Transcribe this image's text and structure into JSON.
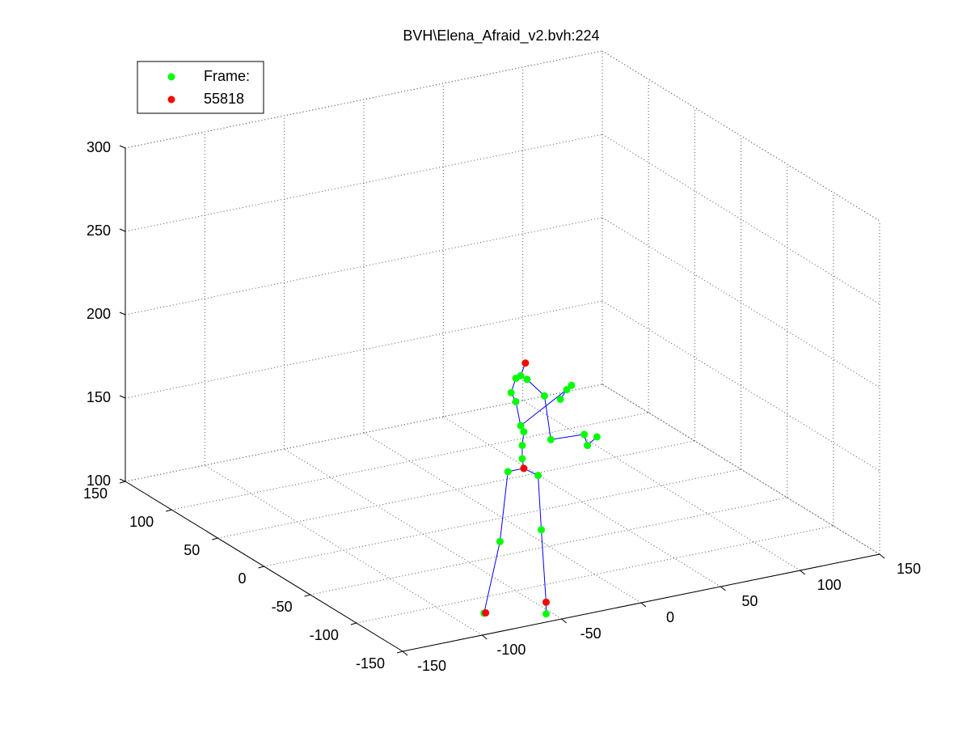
{
  "chart_data": {
    "type": "scatter3d",
    "title": "BVH\\Elena_Afraid_v2.bvh:224",
    "xlim": [
      -150,
      150
    ],
    "ylim": [
      -150,
      150
    ],
    "zlim": [
      100,
      300
    ],
    "xticks": [
      -150,
      -100,
      -50,
      0,
      50,
      100,
      150
    ],
    "yticks": [
      -150,
      -100,
      -50,
      0,
      50,
      100,
      150
    ],
    "zticks": [
      100,
      150,
      200,
      250,
      300
    ],
    "grid": true,
    "legend": "upper-left",
    "series": [
      {
        "name": "Frame:",
        "color": "#00ff00",
        "x": [
          -60,
          -63,
          -59,
          -66,
          -69,
          -66,
          -48,
          -63,
          -61,
          -62,
          -62,
          -61,
          -71,
          -52,
          -76,
          -50,
          -86,
          -47,
          -47,
          -44,
          -38,
          -34,
          -31,
          -21,
          -15,
          -23
        ],
        "y": [
          -128,
          -128,
          -128,
          -128,
          -128,
          -128,
          -128,
          -128,
          -128,
          -128,
          -128,
          -128,
          -128,
          -128,
          -128,
          -128,
          -128,
          -128,
          -128,
          -128,
          -128,
          -128,
          -128,
          -128,
          -128,
          -128
        ],
        "z": [
          248,
          241,
          238,
          240,
          232,
          226,
          226,
          211,
          207,
          199,
          191,
          185,
          185,
          179,
          144,
          146,
          103,
          95,
          102,
          199,
          222,
          227,
          229,
          191,
          195,
          198
        ]
      },
      {
        "name": "55818",
        "color": "#ff0000",
        "x": [
          -60,
          -61,
          -85,
          -47
        ],
        "y": [
          -128,
          -128,
          -128,
          -128
        ],
        "z": [
          248,
          185,
          103,
          102
        ]
      }
    ],
    "edges": [
      [
        11,
        12
      ],
      [
        11,
        13
      ],
      [
        12,
        14
      ],
      [
        14,
        16
      ],
      [
        13,
        15
      ],
      [
        15,
        18
      ],
      [
        18,
        17
      ],
      [
        11,
        10
      ],
      [
        10,
        9
      ],
      [
        9,
        8
      ],
      [
        8,
        7
      ],
      [
        7,
        5
      ],
      [
        5,
        4
      ],
      [
        4,
        3
      ],
      [
        3,
        1
      ],
      [
        1,
        0
      ],
      [
        1,
        2
      ],
      [
        2,
        6
      ],
      [
        6,
        19
      ],
      [
        19,
        25
      ],
      [
        25,
        23
      ],
      [
        23,
        24
      ],
      [
        7,
        21
      ],
      [
        21,
        22
      ],
      [
        21,
        20
      ]
    ],
    "edge_color": "#0000ff"
  }
}
